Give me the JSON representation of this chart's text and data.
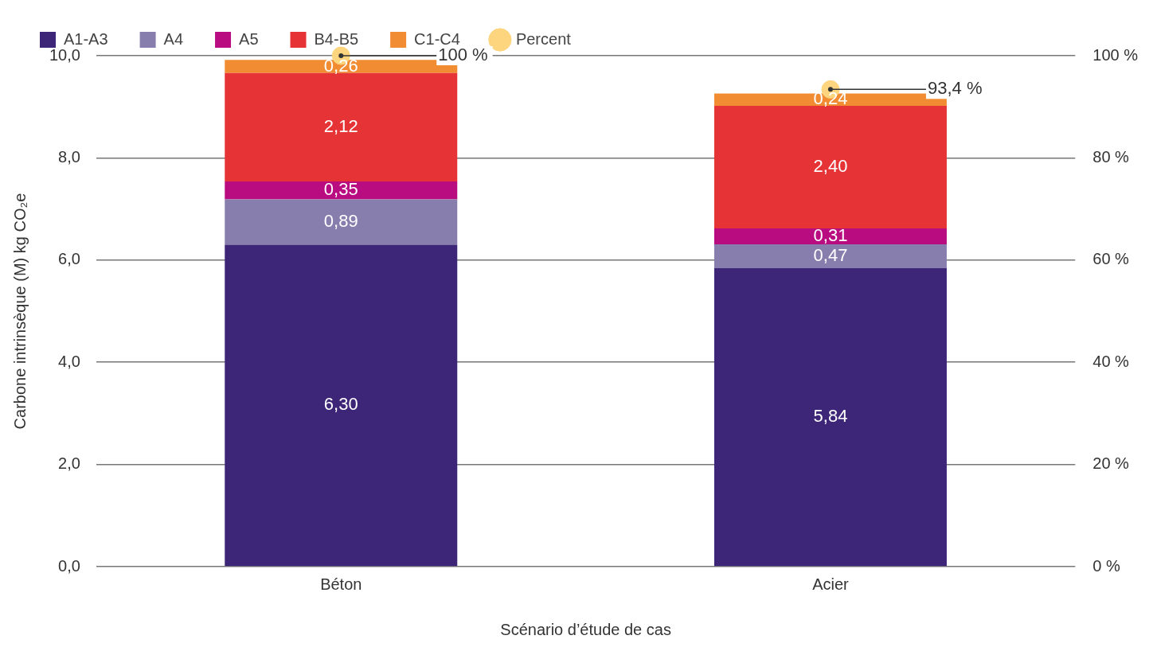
{
  "chart_data": {
    "type": "bar",
    "stacked": true,
    "xlabel": "Scénario d’étude de cas",
    "ylabel": "Carbone intrinsèque (M) kg CO₂e",
    "categories": [
      "Béton",
      "Acier"
    ],
    "series": [
      {
        "name": "A1-A3",
        "color": "#3d2577",
        "values": [
          6.3,
          5.84
        ],
        "value_labels": [
          "6,30",
          "5,84"
        ]
      },
      {
        "name": "A4",
        "color": "#877eae",
        "values": [
          0.89,
          0.47
        ],
        "value_labels": [
          "0,89",
          "0,47"
        ]
      },
      {
        "name": "A5",
        "color": "#b90c80",
        "values": [
          0.35,
          0.31
        ],
        "value_labels": [
          "0,35",
          "0,31"
        ]
      },
      {
        "name": "B4-B5",
        "color": "#e63336",
        "values": [
          2.12,
          2.4
        ],
        "value_labels": [
          "2,12",
          "2,40"
        ]
      },
      {
        "name": "C1-C4",
        "color": "#f28c33",
        "values": [
          0.26,
          0.24
        ],
        "value_labels": [
          "0,26",
          "0,24"
        ]
      },
      {
        "name": "Percent",
        "type": "scatter",
        "axis": "y2",
        "color": "#fdd57e",
        "values": [
          100,
          93.4
        ],
        "value_labels": [
          "100 %",
          "93,4 %"
        ]
      }
    ],
    "ylim": [
      0,
      10
    ],
    "yticks": [
      {
        "value": 0,
        "label": "0,0"
      },
      {
        "value": 2,
        "label": "2,0"
      },
      {
        "value": 4,
        "label": "4,0"
      },
      {
        "value": 6,
        "label": "6,0"
      },
      {
        "value": 8,
        "label": "8,0"
      },
      {
        "value": 10,
        "label": "10,0"
      }
    ],
    "y2lim": [
      0,
      100
    ],
    "y2ticks": [
      {
        "value": 0,
        "label": "0 %"
      },
      {
        "value": 20,
        "label": "20 %"
      },
      {
        "value": 40,
        "label": "40 %"
      },
      {
        "value": 60,
        "label": "60 %"
      },
      {
        "value": 80,
        "label": "80 %"
      },
      {
        "value": 100,
        "label": "100 %"
      }
    ],
    "grid": "y",
    "legend": "top left",
    "marker": "circle"
  }
}
